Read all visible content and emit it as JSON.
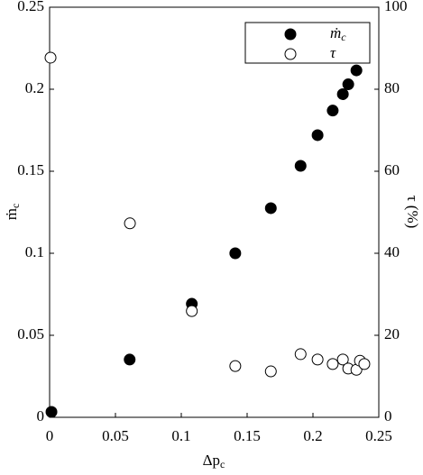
{
  "chart_data": {
    "type": "scatter",
    "xlabel": {
      "text": "Δp",
      "subscript": "c"
    },
    "ylabel": {
      "text": "ṁ",
      "subscript": "c"
    },
    "y2label": "τ (%)",
    "xlim": [
      0,
      0.25
    ],
    "xticks": [
      0,
      0.05,
      0.1,
      0.15,
      0.2,
      0.25
    ],
    "ylim": [
      0,
      0.25
    ],
    "yticks": [
      0,
      0.05,
      0.1,
      0.15,
      0.2,
      0.25
    ],
    "y2lim": [
      0,
      100
    ],
    "y2ticks": [
      0,
      20,
      40,
      60,
      80,
      100
    ],
    "grid": false,
    "legend": "upper right",
    "series": [
      {
        "name": {
          "text": "ṁ",
          "subscript": "c"
        },
        "color": "#000000",
        "filled": true,
        "x": [
          0.0014,
          0.0608,
          0.108,
          0.141,
          0.168,
          0.1906,
          0.2035,
          0.215,
          0.2227,
          0.2268,
          0.233
        ],
        "values": [
          0.0033,
          0.0352,
          0.0692,
          0.1,
          0.1275,
          0.1533,
          0.172,
          0.187,
          0.197,
          0.203,
          0.2115
        ]
      },
      {
        "name": {
          "text": "τ",
          "subscript": ""
        },
        "color": "#000000",
        "filled": false,
        "axis": "y2",
        "x": [
          0.0007,
          0.061,
          0.108,
          0.141,
          0.168,
          0.1906,
          0.2035,
          0.215,
          0.2227,
          0.2268,
          0.233,
          0.2357,
          0.239
        ],
        "values": [
          87.7,
          47.3,
          25.9,
          12.5,
          11.2,
          15.4,
          14.1,
          13.0,
          14.1,
          11.9,
          11.6,
          13.8,
          13.0
        ]
      }
    ]
  }
}
